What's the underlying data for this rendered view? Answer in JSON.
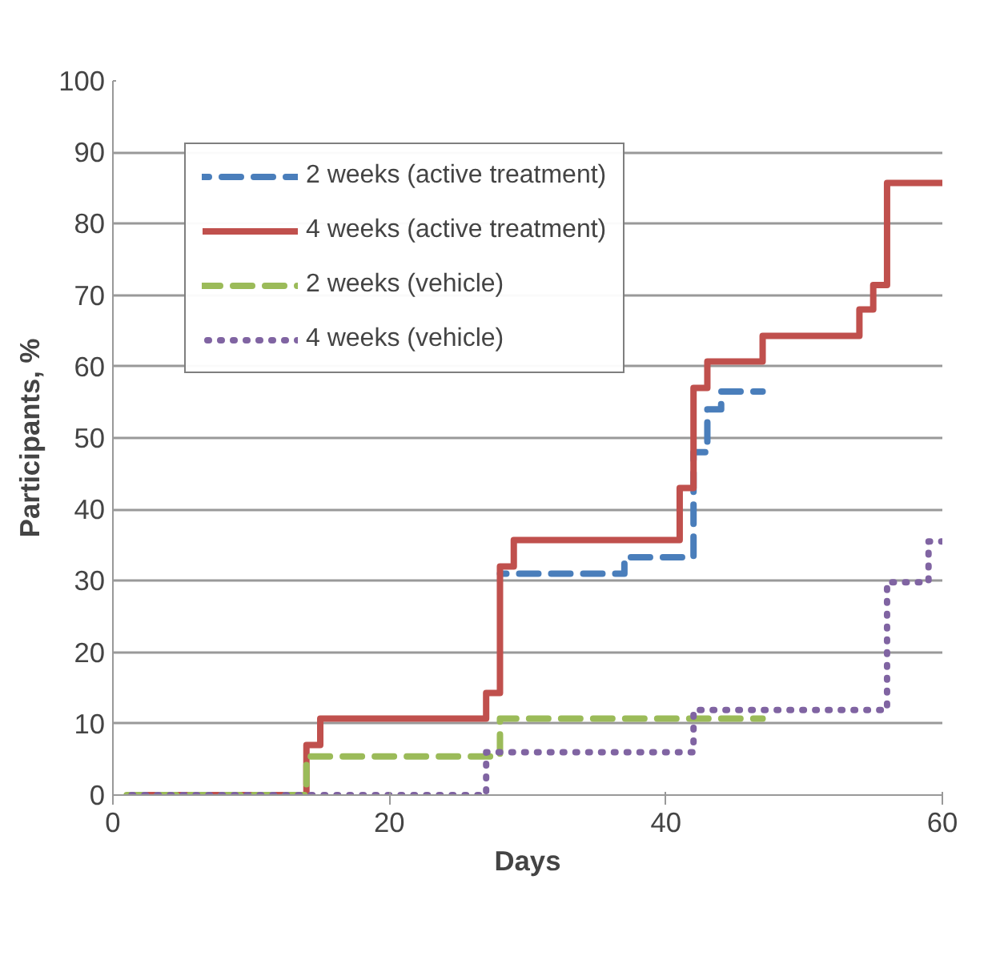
{
  "chart_data": {
    "type": "step",
    "xlabel": "Days",
    "ylabel": "Participants, %",
    "xlim": [
      0,
      60
    ],
    "xticks": [
      0,
      20,
      40,
      60
    ],
    "ylim": [
      0,
      100
    ],
    "yticks": [
      0,
      10,
      20,
      30,
      40,
      50,
      60,
      70,
      80,
      90,
      100
    ],
    "grid": "y",
    "legend": "top left",
    "series": [
      {
        "name": "2 weeks (active treatment)",
        "color": "#4a7ebb",
        "line_style": "dashed",
        "x": [
          28,
          37,
          42,
          43,
          44,
          47
        ],
        "values": [
          31,
          33.3,
          48,
          54,
          56.5,
          56.5
        ]
      },
      {
        "name": "4 weeks (active treatment)",
        "color": "#c0504d",
        "line_style": "solid",
        "x": [
          1,
          14,
          15,
          27,
          28,
          29,
          41,
          42,
          43,
          47,
          54,
          55,
          56,
          60
        ],
        "values": [
          0,
          7,
          10.7,
          14.3,
          32,
          35.7,
          43,
          57,
          60.7,
          64.3,
          68,
          71.4,
          85.7,
          85.7
        ]
      },
      {
        "name": "2 weeks (vehicle)",
        "color": "#9bbb59",
        "line_style": "dashed",
        "x": [
          1,
          14,
          28,
          47
        ],
        "values": [
          0,
          5.4,
          10.7,
          10.7
        ]
      },
      {
        "name": "4 weeks (vehicle)",
        "color": "#8064a2",
        "line_style": "dotted",
        "x": [
          1,
          27,
          42,
          56,
          59,
          60
        ],
        "values": [
          0,
          6,
          11.9,
          29.8,
          35.5,
          35.5
        ]
      }
    ]
  }
}
